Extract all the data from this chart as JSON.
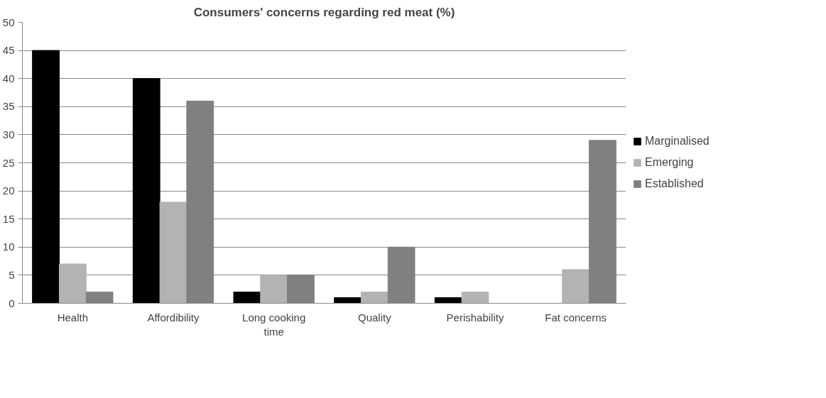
{
  "chart_data": {
    "type": "bar",
    "title": "Consumers' concerns regarding red meat (%)",
    "categories": [
      "Health",
      "Affordibility",
      "Long cooking time",
      "Quality",
      "Perishability",
      "Fat concerns"
    ],
    "series": [
      {
        "name": "Marginalised",
        "color": "#000000",
        "values": [
          45,
          40,
          2,
          1,
          1,
          0
        ]
      },
      {
        "name": "Emerging",
        "color": "#b3b3b3",
        "values": [
          7,
          18,
          5,
          2,
          2,
          6
        ]
      },
      {
        "name": "Established",
        "color": "#808080",
        "values": [
          2,
          36,
          5,
          10,
          0,
          29
        ]
      }
    ],
    "ylim": [
      0,
      50
    ],
    "yticks": [
      0,
      5,
      10,
      15,
      20,
      25,
      30,
      35,
      40,
      45,
      50
    ],
    "grid": "y",
    "legend": "right"
  }
}
